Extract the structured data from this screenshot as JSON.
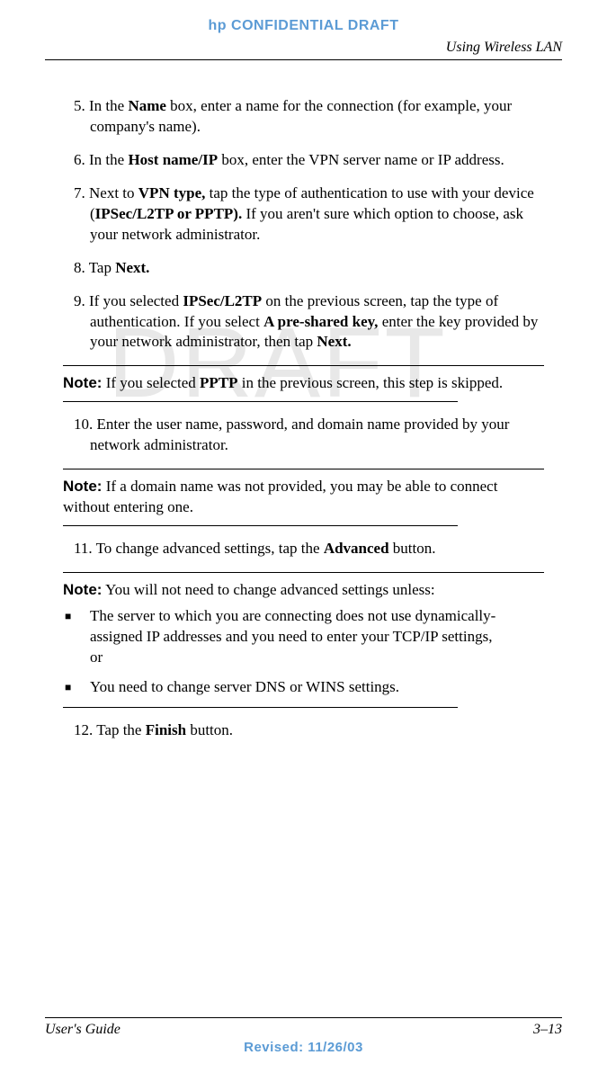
{
  "header": {
    "confidential": "hp CONFIDENTIAL DRAFT",
    "section_title": "Using Wireless LAN"
  },
  "watermark": "DRAFT",
  "steps": {
    "s5_num": "5. ",
    "s5_a": "In the ",
    "s5_b": "Name",
    "s5_c": " box, enter a name for the connection (for example, your company's name).",
    "s6_num": "6. ",
    "s6_a": "In the ",
    "s6_b": "Host name/IP",
    "s6_c": " box, enter the VPN server name or IP address.",
    "s7_num": "7. ",
    "s7_a": "Next to ",
    "s7_b": "VPN type,",
    "s7_c": " tap the type of authentication to use with your device (",
    "s7_d": "IPSec/L2TP or PPTP).",
    "s7_e": " If you aren't sure which option to choose, ask your network administrator.",
    "s8_num": "8. ",
    "s8_a": "Tap ",
    "s8_b": "Next.",
    "s9_num": "9. ",
    "s9_a": "If you selected ",
    "s9_b": "IPSec/L2TP",
    "s9_c": " on the previous screen, tap the type of authentication. If you select ",
    "s9_d": "A pre-shared key,",
    "s9_e": " enter the key provided by your network administrator, then tap ",
    "s9_f": "Next.",
    "s10_num": "10. ",
    "s10_a": "Enter the user name, password, and domain name provided by your network administrator.",
    "s11_num": "11. ",
    "s11_a": "To change advanced settings, tap the ",
    "s11_b": "Advanced",
    "s11_c": " button.",
    "s12_num": "12. ",
    "s12_a": "Tap the ",
    "s12_b": "Finish",
    "s12_c": " button."
  },
  "notes": {
    "label": "Note:",
    "n1_a": " If you selected ",
    "n1_b": "PPTP",
    "n1_c": " in the previous screen, this step is skipped.",
    "n2": " If a domain name was not provided, you may be able to connect without entering one.",
    "n3": " You will not need to change advanced settings unless:",
    "bullet1": "The server to which you are connecting does not use dynamically-assigned IP addresses and you need to enter your TCP/IP settings,\nor",
    "bullet2": "You need to change server DNS or WINS settings."
  },
  "footer": {
    "guide": "User's Guide",
    "page": "3–13",
    "revised": "Revised: 11/26/03"
  },
  "colors": {
    "accent": "#5b9bd5",
    "watermark": "#e8e8e8",
    "text": "#000000"
  }
}
